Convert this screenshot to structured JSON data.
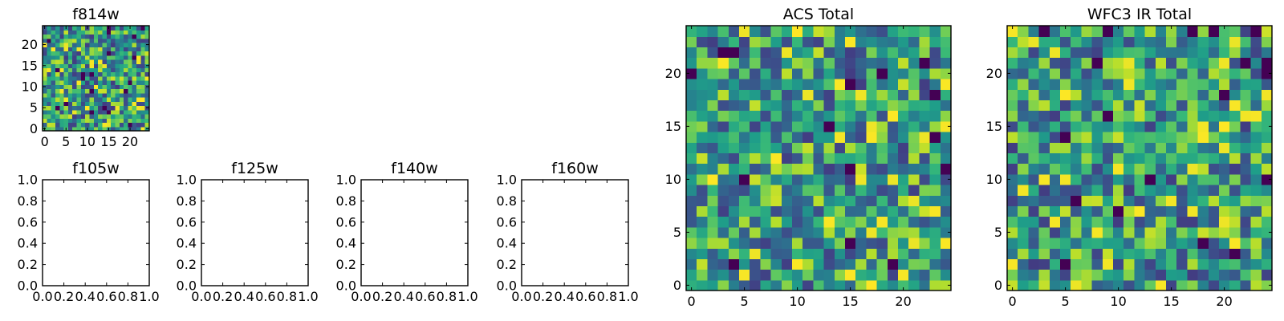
{
  "chart_data": [
    {
      "type": "heatmap",
      "title": "f814w",
      "grid_size": 25,
      "xlim": [
        -0.5,
        24.5
      ],
      "ylim": [
        -0.5,
        24.5
      ],
      "x_ticks": [
        "0",
        "5",
        "10",
        "15",
        "20"
      ],
      "y_ticks": [
        "0",
        "5",
        "10",
        "15",
        "20"
      ],
      "colormap": "viridis",
      "value_range": [
        0,
        1
      ]
    },
    {
      "type": "heatmap",
      "title": "f105w",
      "xlim": [
        0.0,
        1.0
      ],
      "ylim": [
        0.0,
        1.0
      ],
      "x_ticks": [
        "0.0",
        "0.2",
        "0.4",
        "0.6",
        "0.8",
        "1.0"
      ],
      "y_ticks": [
        "0.0",
        "0.2",
        "0.4",
        "0.6",
        "0.8",
        "1.0"
      ]
    },
    {
      "type": "heatmap",
      "title": "f125w",
      "xlim": [
        0.0,
        1.0
      ],
      "ylim": [
        0.0,
        1.0
      ],
      "x_ticks": [
        "0.0",
        "0.2",
        "0.4",
        "0.6",
        "0.8",
        "1.0"
      ],
      "y_ticks": [
        "0.0",
        "0.2",
        "0.4",
        "0.6",
        "0.8",
        "1.0"
      ]
    },
    {
      "type": "heatmap",
      "title": "f140w",
      "xlim": [
        0.0,
        1.0
      ],
      "ylim": [
        0.0,
        1.0
      ],
      "x_ticks": [
        "0.0",
        "0.2",
        "0.4",
        "0.6",
        "0.8",
        "1.0"
      ],
      "y_ticks": [
        "0.0",
        "0.2",
        "0.4",
        "0.6",
        "0.8",
        "1.0"
      ]
    },
    {
      "type": "heatmap",
      "title": "f160w",
      "xlim": [
        0.0,
        1.0
      ],
      "ylim": [
        0.0,
        1.0
      ],
      "x_ticks": [
        "0.0",
        "0.2",
        "0.4",
        "0.6",
        "0.8",
        "1.0"
      ],
      "y_ticks": [
        "0.0",
        "0.2",
        "0.4",
        "0.6",
        "0.8",
        "1.0"
      ]
    },
    {
      "type": "heatmap",
      "title": "ACS Total",
      "grid_size": 25,
      "xlim": [
        -0.5,
        24.5
      ],
      "ylim": [
        -0.5,
        24.5
      ],
      "x_ticks": [
        "0",
        "5",
        "10",
        "15",
        "20"
      ],
      "y_ticks": [
        "0",
        "5",
        "10",
        "15",
        "20"
      ],
      "colormap": "viridis",
      "value_range": [
        0,
        1
      ]
    },
    {
      "type": "heatmap",
      "title": "WFC3 IR Total",
      "grid_size": 25,
      "xlim": [
        -0.5,
        24.5
      ],
      "ylim": [
        -0.5,
        24.5
      ],
      "x_ticks": [
        "0",
        "5",
        "10",
        "15",
        "20"
      ],
      "y_ticks": [
        "0",
        "5",
        "10",
        "15",
        "20"
      ],
      "colormap": "viridis",
      "value_range": [
        0,
        1
      ]
    }
  ]
}
